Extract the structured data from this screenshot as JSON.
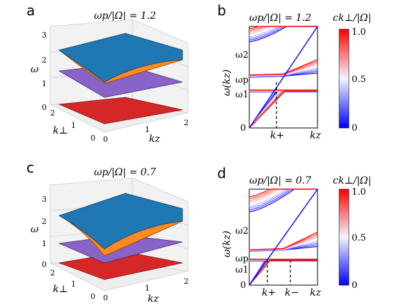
{
  "panels": {
    "a": {
      "letter": "a",
      "title": "ωp/|Ω| = 1.2",
      "ztick_labels": [
        "0",
        "1",
        "2",
        "3"
      ],
      "z_axis_label": "ω",
      "kz_tick_labels": [
        "0",
        "1",
        "2"
      ],
      "kz_label": "kz",
      "kperp_tick_labels": [
        "0",
        "1",
        "2"
      ],
      "kperp_label": "k⊥"
    },
    "b": {
      "letter": "b",
      "title": "ωp/|Ω| = 1.2",
      "ylabel": "ω(kz)",
      "xlabel": "kz",
      "ytick_labels": [
        "ω2",
        "ωp",
        "ω1",
        "0"
      ],
      "xtick_labels": [
        "k+"
      ]
    },
    "c": {
      "letter": "c",
      "title": "ωp/|Ω| = 0.7",
      "ztick_labels": [
        "0",
        "1",
        "2",
        "3"
      ],
      "z_axis_label": "ω",
      "kz_tick_labels": [
        "0",
        "1",
        "2"
      ],
      "kz_label": "kz",
      "kperp_tick_labels": [
        "0",
        "1",
        "2"
      ],
      "kperp_label": "k⊥"
    },
    "d": {
      "letter": "d",
      "title": "ωp/|Ω| = 0.7",
      "ylabel": "ω(kz)",
      "xlabel": "kz",
      "ytick_labels": [
        "ω2",
        "ωp",
        "ω1",
        "0"
      ],
      "xtick_labels": [
        "k+",
        "k−"
      ]
    }
  },
  "colorbar": {
    "title": "ck⊥/|Ω|",
    "tick_labels": [
      "1.0",
      "0.5",
      "0"
    ],
    "color_low": "#0000ff",
    "color_mid": "#f0f0ff",
    "color_high": "#ff0000"
  },
  "chart_data": [
    {
      "type": "surface",
      "panel": "a",
      "ratio": 1.2,
      "surfaces": [
        "#1f77b4",
        "#ff8a1e",
        "#8a63c8",
        "#d62728"
      ],
      "zlim": [
        0,
        3
      ],
      "xlim": [
        0,
        2
      ],
      "ylim": [
        0,
        2
      ]
    },
    {
      "type": "line",
      "panel": "b",
      "ratio": 1.2,
      "normalized_levels": {
        "omega_p": 1.2,
        "omega_1": 0.85,
        "omega_2": 1.9
      },
      "k_plus": 0.45,
      "xlim": [
        0,
        1.0
      ],
      "ylim": [
        0,
        2.3
      ]
    },
    {
      "type": "surface",
      "panel": "c",
      "ratio": 0.7,
      "surfaces": [
        "#1f77b4",
        "#ff8a1e",
        "#8a63c8",
        "#d62728"
      ],
      "zlim": [
        0,
        3
      ],
      "xlim": [
        0,
        2
      ],
      "ylim": [
        0,
        2
      ]
    },
    {
      "type": "line",
      "panel": "d",
      "ratio": 0.7,
      "normalized_levels": {
        "omega_p": 0.7,
        "omega_1": 0.5,
        "omega_2": 1.4
      },
      "k_plus": 0.28,
      "k_minus": 0.67,
      "xlim": [
        0,
        1.0
      ],
      "ylim": [
        0,
        1.9
      ]
    }
  ]
}
